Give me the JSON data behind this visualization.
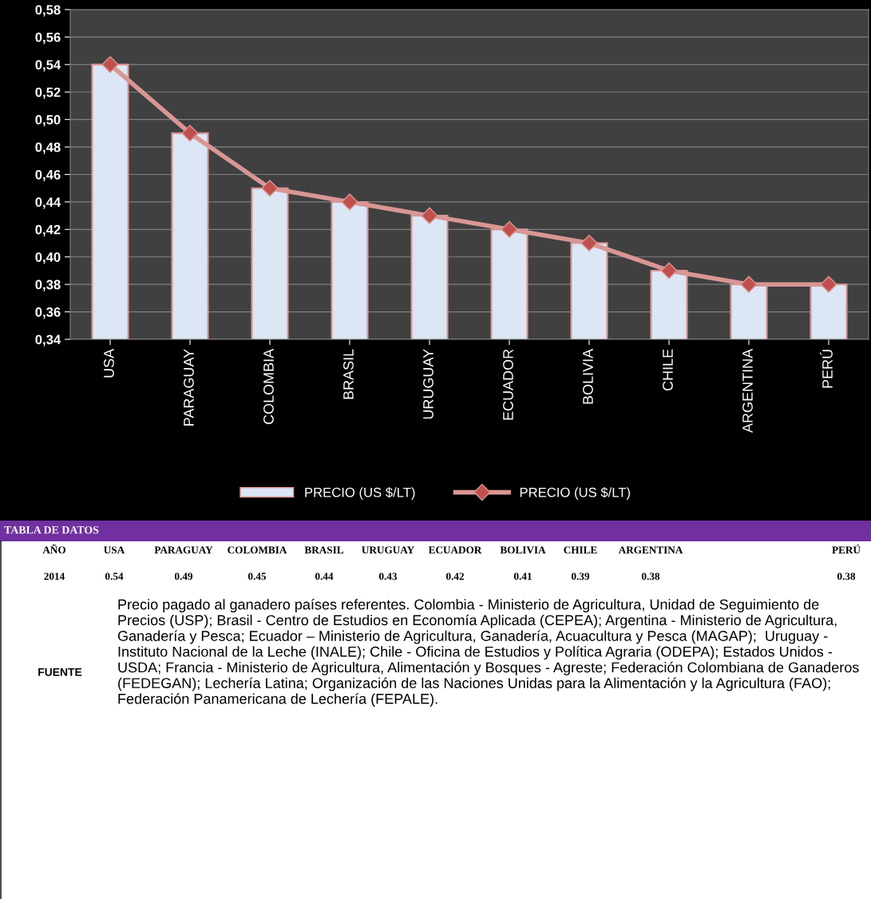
{
  "chart_data": {
    "type": "bar",
    "categories": [
      "USA",
      "PARAGUAY",
      "COLOMBIA",
      "BRASIL",
      "URUGUAY",
      "ECUADOR",
      "BOLIVIA",
      "CHILE",
      "ARGENTINA",
      "PERÚ"
    ],
    "series": [
      {
        "name": "PRECIO (US $/LT)",
        "color": "#dce6f5",
        "values": [
          0.54,
          0.49,
          0.45,
          0.44,
          0.43,
          0.42,
          0.41,
          0.39,
          0.38,
          0.38
        ]
      },
      {
        "name": "PRECIO (US $/LT)",
        "type": "line",
        "color": "#d99694",
        "marker": "diamond",
        "values": [
          0.54,
          0.49,
          0.45,
          0.44,
          0.43,
          0.42,
          0.41,
          0.39,
          0.38,
          0.38
        ]
      }
    ],
    "ylim": [
      0.34,
      0.58
    ],
    "yticks": [
      {
        "value": 0.34,
        "label": "0,34"
      },
      {
        "value": 0.36,
        "label": "0,36"
      },
      {
        "value": 0.38,
        "label": "0,38"
      },
      {
        "value": 0.4,
        "label": "0,40"
      },
      {
        "value": 0.42,
        "label": "0,42"
      },
      {
        "value": 0.44,
        "label": "0,44"
      },
      {
        "value": 0.46,
        "label": "0,46"
      },
      {
        "value": 0.48,
        "label": "0,48"
      },
      {
        "value": 0.5,
        "label": "0,50"
      },
      {
        "value": 0.52,
        "label": "0,52"
      },
      {
        "value": 0.54,
        "label": "0,54"
      },
      {
        "value": 0.56,
        "label": "0,56"
      },
      {
        "value": 0.58,
        "label": "0,58"
      }
    ],
    "grid": "y",
    "legend": "bottom",
    "annotations": [
      "TABLA DE DATOS",
      "AÑO",
      "2014",
      "0.54",
      "0.49",
      "0.45",
      "0.44",
      "0.43",
      "0.42",
      "0.41",
      "0.39",
      "0.38",
      "0.38",
      "FUENTE",
      "Precio pagado al ganadero países referentes. Colombia - Ministerio de Agricultura, Unidad de Seguimiento de Precios (USP); Brasil - Centro de Estudios en Economía Aplicada (CEPEA); Argentina - Ministerio de Agricultura, Ganadería y Pesca; Ecuador – Ministerio de Agricultura, Ganadería, Acuacultura y Pesca (MAGAP);  Uruguay - Instituto Nacional de la Leche (INALE); Chile - Oficina de Estudios y Política Agraria (ODEPA); Estados Unidos - USDA; Francia - Ministerio de Agricultura, Alimentación y Bosques - Agreste; Federación Colombiana de Ganaderos (FEDEGAN); Lechería Latina; Organización de las Naciones Unidas para la Alimentación y la Agricultura (FAO); Federación Panamericana de Lechería (FEPALE)."
    ]
  }
}
